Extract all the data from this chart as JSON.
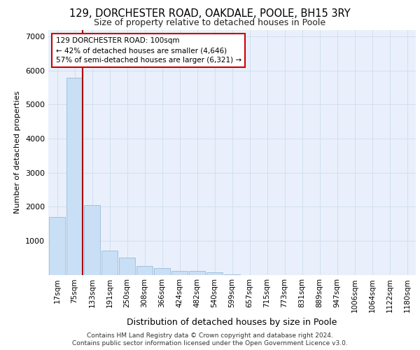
{
  "title1": "129, DORCHESTER ROAD, OAKDALE, POOLE, BH15 3RY",
  "title2": "Size of property relative to detached houses in Poole",
  "xlabel": "Distribution of detached houses by size in Poole",
  "ylabel": "Number of detached properties",
  "categories": [
    "17sqm",
    "75sqm",
    "133sqm",
    "191sqm",
    "250sqm",
    "308sqm",
    "366sqm",
    "424sqm",
    "482sqm",
    "540sqm",
    "599sqm",
    "657sqm",
    "715sqm",
    "773sqm",
    "831sqm",
    "889sqm",
    "947sqm",
    "1006sqm",
    "1064sqm",
    "1122sqm",
    "1180sqm"
  ],
  "values": [
    1700,
    5800,
    2050,
    700,
    500,
    250,
    200,
    120,
    120,
    70,
    10,
    0,
    0,
    0,
    0,
    0,
    0,
    0,
    0,
    0,
    0
  ],
  "bar_color": "#c9dff5",
  "bar_edge_color": "#9bbbd8",
  "vline_color": "#aa0000",
  "annotation_text": "129 DORCHESTER ROAD: 100sqm\n← 42% of detached houses are smaller (4,646)\n57% of semi-detached houses are larger (6,321) →",
  "annotation_box_facecolor": "white",
  "annotation_box_edgecolor": "#cc0000",
  "ylim": [
    0,
    7200
  ],
  "yticks": [
    0,
    1000,
    2000,
    3000,
    4000,
    5000,
    6000,
    7000
  ],
  "footnote1": "Contains HM Land Registry data © Crown copyright and database right 2024.",
  "footnote2": "Contains public sector information licensed under the Open Government Licence v3.0.",
  "grid_color": "#d0dff0",
  "background_color": "#eaf0fb",
  "title1_fontsize": 10.5,
  "title2_fontsize": 9,
  "ylabel_fontsize": 8,
  "xlabel_fontsize": 9,
  "tick_fontsize": 7.5,
  "footnote_fontsize": 6.5
}
